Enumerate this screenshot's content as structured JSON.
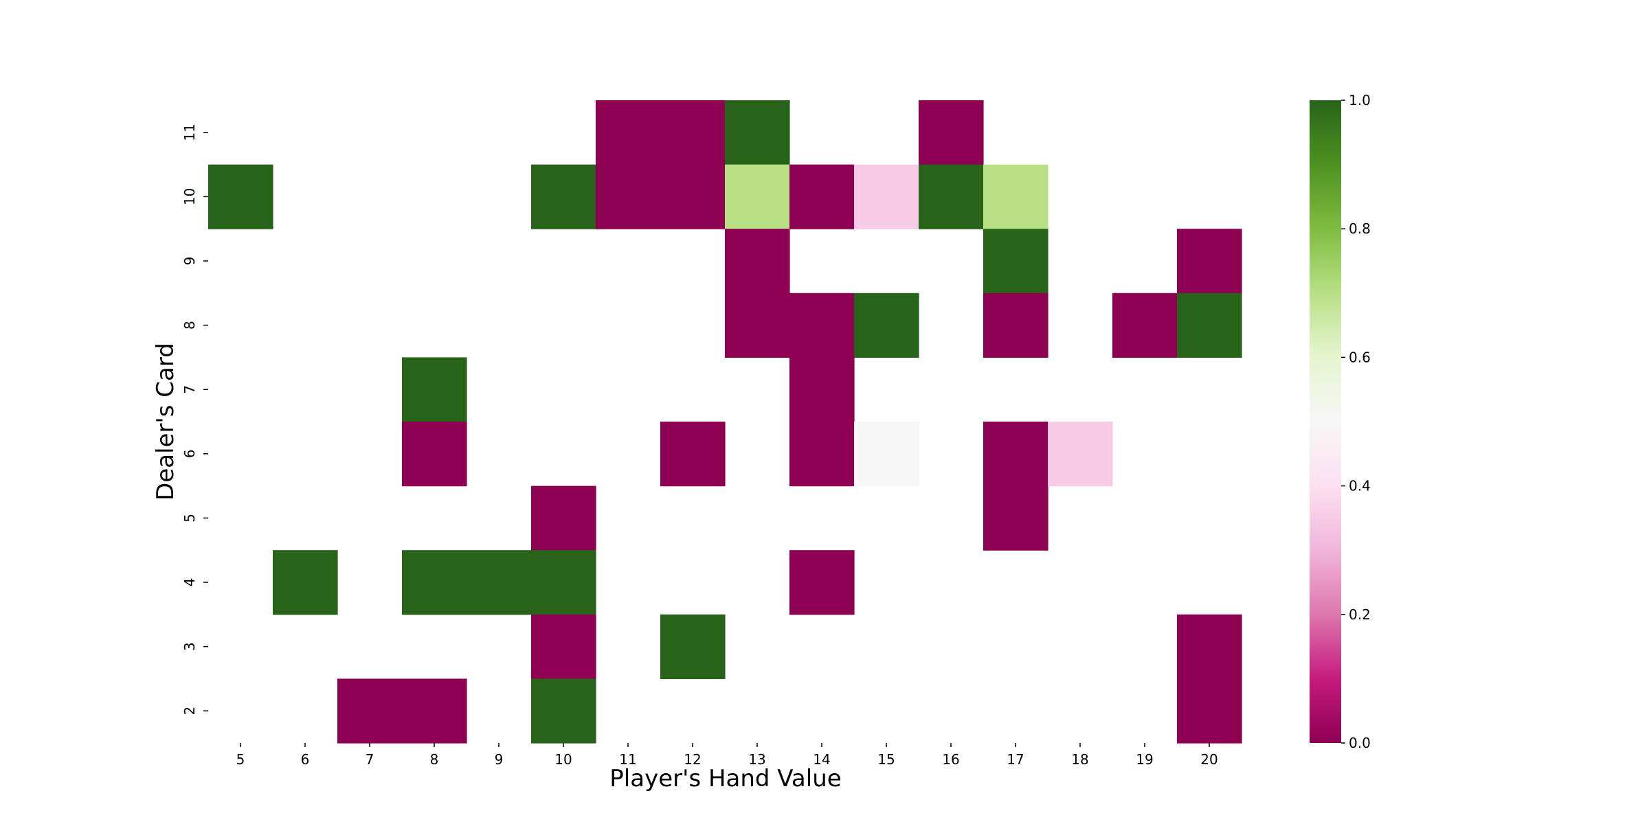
{
  "chart_data": {
    "type": "heatmap",
    "xlabel": "Player's Hand Value",
    "ylabel": "Dealer's Card",
    "x": [
      "5",
      "6",
      "7",
      "8",
      "9",
      "10",
      "11",
      "12",
      "13",
      "14",
      "15",
      "16",
      "17",
      "18",
      "19",
      "20"
    ],
    "y": [
      "11",
      "10",
      "9",
      "8",
      "7",
      "6",
      "5",
      "4",
      "3",
      "2"
    ],
    "values": [
      [
        null,
        null,
        null,
        null,
        null,
        null,
        0,
        0,
        1,
        null,
        null,
        0,
        null,
        null,
        null,
        null
      ],
      [
        1,
        null,
        null,
        null,
        null,
        1,
        0,
        0,
        0.7,
        0,
        0.35,
        1,
        0.7,
        null,
        null,
        null
      ],
      [
        null,
        null,
        null,
        null,
        null,
        null,
        null,
        null,
        0,
        null,
        null,
        null,
        1,
        null,
        null,
        0
      ],
      [
        null,
        null,
        null,
        null,
        null,
        null,
        null,
        null,
        0,
        0,
        1,
        null,
        0,
        null,
        0,
        1
      ],
      [
        null,
        null,
        null,
        1,
        null,
        null,
        null,
        null,
        null,
        0,
        null,
        null,
        null,
        null,
        null,
        null
      ],
      [
        null,
        null,
        null,
        0,
        null,
        null,
        null,
        0,
        null,
        0,
        0.5,
        null,
        0,
        0.35,
        null,
        null
      ],
      [
        null,
        null,
        null,
        null,
        null,
        0,
        null,
        null,
        null,
        null,
        null,
        null,
        0,
        null,
        null,
        null
      ],
      [
        null,
        1,
        null,
        1,
        1,
        1,
        null,
        null,
        null,
        0,
        null,
        null,
        null,
        null,
        null,
        null
      ],
      [
        null,
        null,
        null,
        null,
        null,
        0,
        null,
        1,
        null,
        null,
        null,
        null,
        null,
        null,
        null,
        0
      ],
      [
        null,
        null,
        0,
        0,
        null,
        1,
        null,
        null,
        null,
        null,
        null,
        null,
        null,
        null,
        null,
        0
      ]
    ],
    "colorbar": {
      "colormap": "PiYG",
      "min": 0.0,
      "max": 1.0,
      "ticks": [
        "0.0",
        "0.2",
        "0.4",
        "0.6",
        "0.8",
        "1.0"
      ]
    },
    "grid": false,
    "legend": "colorbar-right"
  }
}
